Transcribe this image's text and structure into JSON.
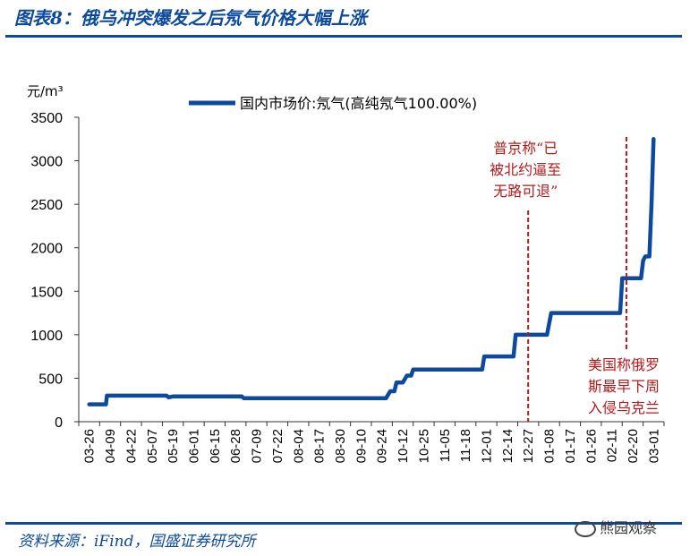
{
  "figure": {
    "title": "图表8：俄乌冲突爆发之后氖气价格大幅上涨",
    "source": "资料来源：iFind，国盛证券研究所",
    "watermark": "熊园观察"
  },
  "colors": {
    "brand": "#0d4a9e",
    "series": "#0d4a9e",
    "annotation": "#b31b1b",
    "axis": "#333333"
  },
  "chart_data": {
    "type": "line",
    "title": "",
    "xlabel": "",
    "ylabel": "元/m³",
    "ylim": [
      0,
      3500
    ],
    "yticks": [
      0,
      500,
      1000,
      1500,
      2000,
      2500,
      3000,
      3500
    ],
    "xticks": [
      "03-26",
      "04-09",
      "04-22",
      "05-07",
      "05-19",
      "06-01",
      "06-15",
      "06-28",
      "07-09",
      "07-22",
      "08-04",
      "08-17",
      "08-30",
      "09-10",
      "09-24",
      "10-12",
      "10-25",
      "11-05",
      "11-18",
      "12-01",
      "12-14",
      "12-27",
      "01-08",
      "01-17",
      "01-26",
      "02-11",
      "02-20",
      "03-01"
    ],
    "legend": {
      "position": "top",
      "entries": [
        "国内市场价:氖气(高纯氖气100.00%)"
      ]
    },
    "grid": false,
    "series": [
      {
        "name": "国内市场价:氖气(高纯氖气100.00%)",
        "points": [
          [
            0,
            200
          ],
          [
            0.8,
            200
          ],
          [
            0.85,
            300
          ],
          [
            3.7,
            300
          ],
          [
            3.8,
            280
          ],
          [
            4.0,
            290
          ],
          [
            7.3,
            290
          ],
          [
            7.4,
            270
          ],
          [
            14.2,
            270
          ],
          [
            14.4,
            350
          ],
          [
            14.6,
            350
          ],
          [
            14.7,
            450
          ],
          [
            15.0,
            450
          ],
          [
            15.2,
            530
          ],
          [
            15.4,
            530
          ],
          [
            15.5,
            600
          ],
          [
            18.8,
            600
          ],
          [
            18.9,
            750
          ],
          [
            20.3,
            750
          ],
          [
            20.4,
            1000
          ],
          [
            21.9,
            1000
          ],
          [
            22.1,
            1250
          ],
          [
            25.4,
            1250
          ],
          [
            25.5,
            1650
          ],
          [
            26.4,
            1650
          ],
          [
            26.5,
            1850
          ],
          [
            26.6,
            1900
          ],
          [
            26.8,
            1900
          ],
          [
            26.9,
            2500
          ],
          [
            27.0,
            3250
          ]
        ]
      }
    ],
    "annotations": [
      {
        "x": 21.0,
        "text": [
          "普京称“已",
          "被北约逼至",
          "无路可退”"
        ],
        "position": "above"
      },
      {
        "x": 25.7,
        "text": [
          "美国称俄罗",
          "斯最早下周",
          "入侵乌克兰"
        ],
        "position": "below"
      }
    ]
  }
}
